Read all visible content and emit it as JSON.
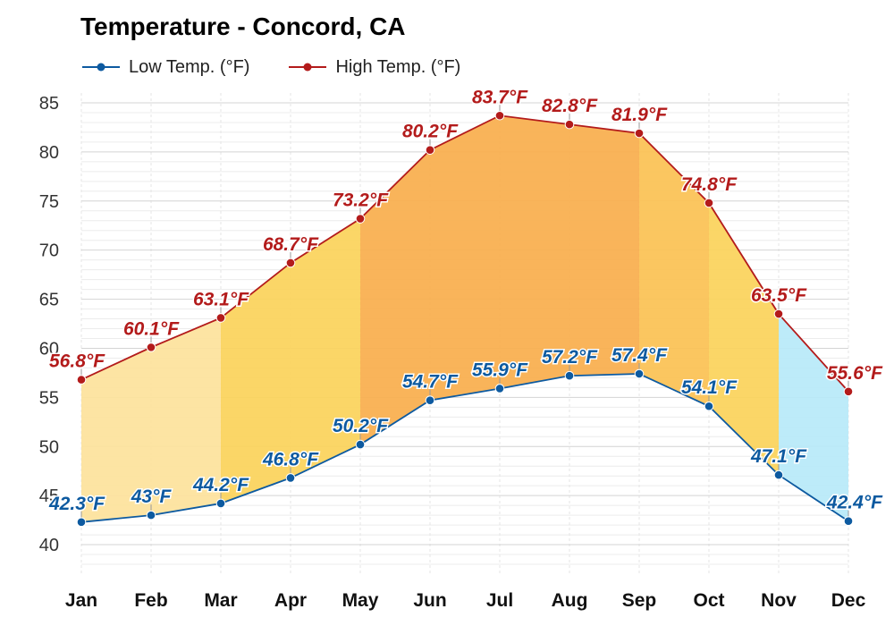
{
  "chart_data": {
    "type": "line",
    "title": "Temperature - Concord, CA",
    "categories": [
      "Jan",
      "Feb",
      "Mar",
      "Apr",
      "May",
      "Jun",
      "Jul",
      "Aug",
      "Sep",
      "Oct",
      "Nov",
      "Dec"
    ],
    "series": [
      {
        "name": "Low Temp. (°F)",
        "values": [
          42.3,
          43,
          44.2,
          46.8,
          50.2,
          54.7,
          55.9,
          57.2,
          57.4,
          54.1,
          47.1,
          42.4
        ],
        "labels": [
          "42.3°F",
          "43°F",
          "44.2°F",
          "46.8°F",
          "50.2°F",
          "54.7°F",
          "55.9°F",
          "57.2°F",
          "57.4°F",
          "54.1°F",
          "47.1°F",
          "42.4°F"
        ],
        "color": "#0d5aa0"
      },
      {
        "name": "High Temp. (°F)",
        "values": [
          56.8,
          60.1,
          63.1,
          68.7,
          73.2,
          80.2,
          83.7,
          82.8,
          81.9,
          74.8,
          63.5,
          55.6
        ],
        "labels": [
          "56.8°F",
          "60.1°F",
          "63.1°F",
          "68.7°F",
          "73.2°F",
          "80.2°F",
          "83.7°F",
          "82.8°F",
          "81.9°F",
          "74.8°F",
          "63.5°F",
          "55.6°F"
        ],
        "color": "#b31b1b"
      }
    ],
    "band_colors": [
      "#fde29b",
      "#fde29b",
      "#fbd35a",
      "#fbd35a",
      "#f9ae4c",
      "#f9ae4c",
      "#f9ae4c",
      "#f9ae4c",
      "#fbc153",
      "#fbd35a",
      "#b7e9f9"
    ],
    "ylim": [
      37,
      86
    ],
    "yticks": [
      40,
      45,
      50,
      55,
      60,
      65,
      70,
      75,
      80,
      85
    ],
    "grid": true,
    "legend_position": "top-left",
    "xlabel": "",
    "ylabel": ""
  }
}
